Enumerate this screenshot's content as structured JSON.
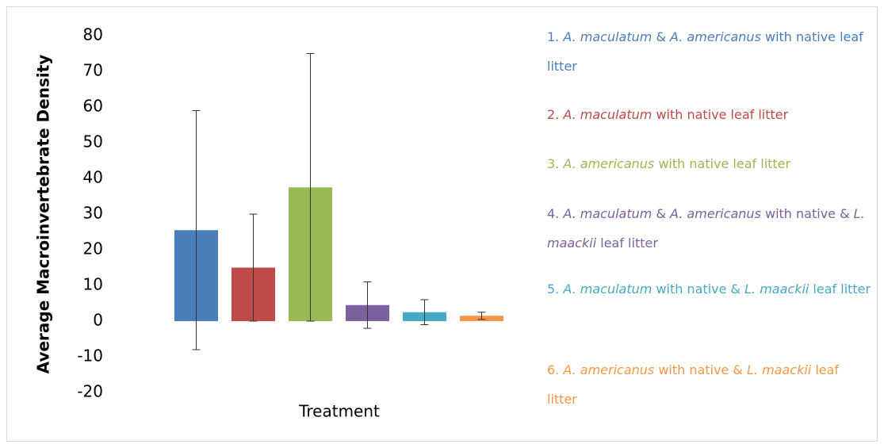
{
  "chart_data": {
    "type": "bar",
    "ylabel": "Average Macroinvertebrate Density",
    "xlabel": "Treatment",
    "ylim": [
      -20,
      80
    ],
    "yticks": [
      -20,
      -10,
      0,
      10,
      20,
      30,
      40,
      50,
      60,
      70,
      80
    ],
    "grid": false,
    "legend": "right",
    "series": [
      {
        "name": "1. A. maculatum & A. americanus with native leaf litter",
        "color": "#4a7ebb",
        "values": [
          25.5
        ],
        "errors": [
          33.5
        ]
      },
      {
        "name": "2. A. maculatum with native leaf litter",
        "color": "#be4b48",
        "values": [
          15
        ],
        "errors": [
          15
        ]
      },
      {
        "name": "3. A. americanus with native leaf litter",
        "color": "#98b954",
        "values": [
          37.5
        ],
        "errors": [
          37.5
        ]
      },
      {
        "name": "4. A. maculatum & A. americanus with native & L. maackii leaf litter",
        "color": "#7d60a0",
        "values": [
          4.5
        ],
        "errors": [
          6.5
        ]
      },
      {
        "name": "5. A. maculatum with native & L. maackii leaf litter",
        "color": "#46aac5",
        "values": [
          2.5
        ],
        "errors": [
          3.5
        ]
      },
      {
        "name": "6. A. americanus with native & L. maackii leaf litter",
        "color": "#f79646",
        "values": [
          1.5
        ],
        "errors": [
          1
        ]
      }
    ]
  }
}
